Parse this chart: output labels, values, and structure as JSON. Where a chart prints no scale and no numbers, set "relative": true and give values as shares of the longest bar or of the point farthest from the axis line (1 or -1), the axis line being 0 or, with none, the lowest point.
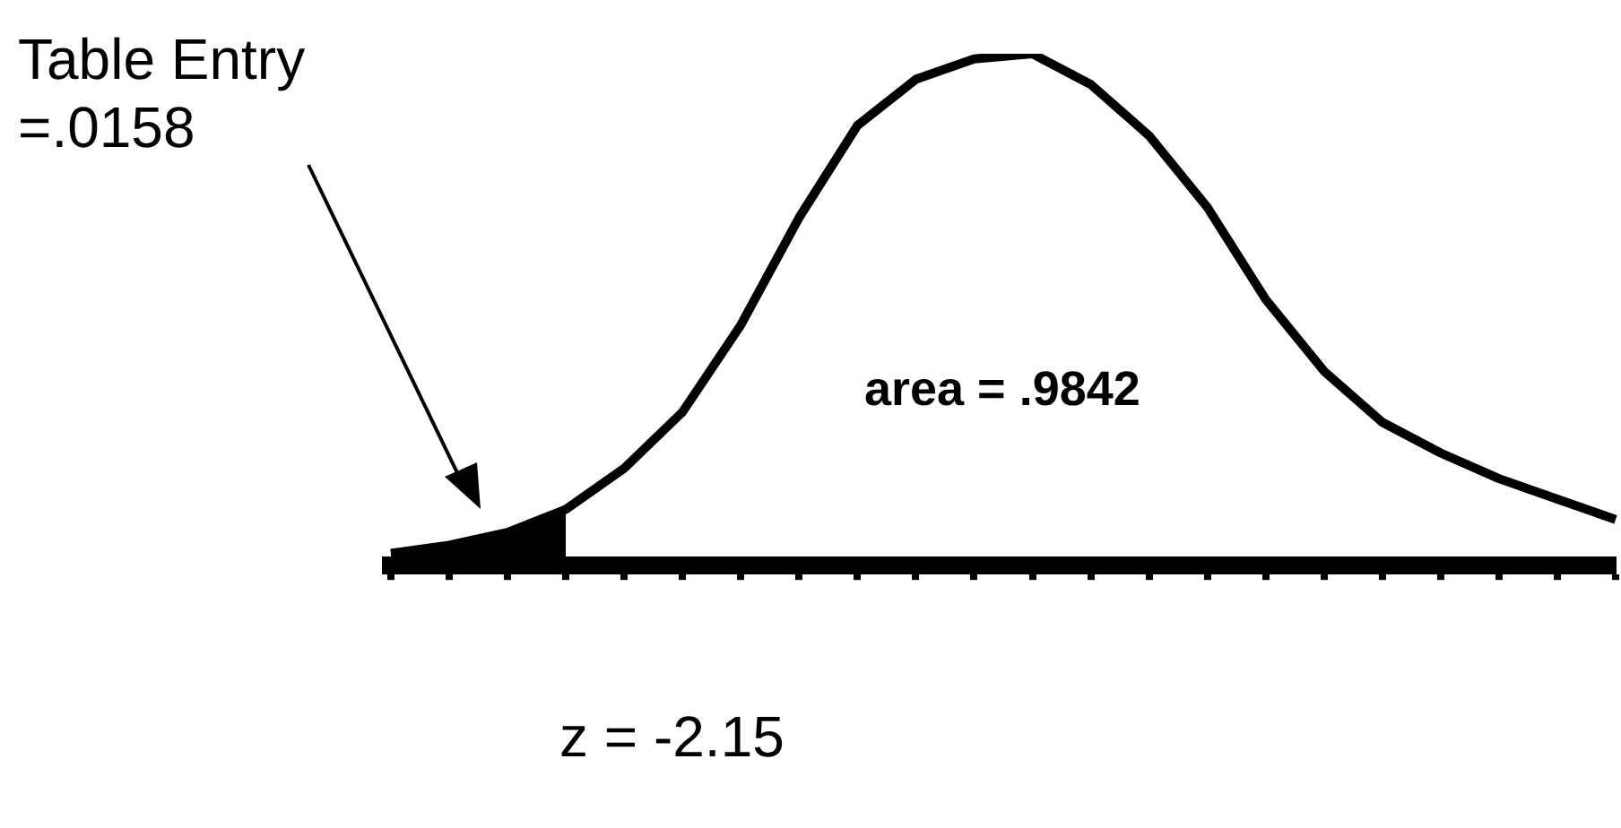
{
  "chart_data": {
    "type": "line",
    "relative": true,
    "legend": false,
    "categories": [
      null,
      null,
      null,
      null,
      null,
      null,
      null,
      null,
      null,
      null,
      null,
      null,
      null,
      null,
      null,
      null,
      null,
      null,
      null,
      null,
      null,
      null
    ],
    "series": [
      {
        "type": "area",
        "color": "#000000",
        "values": [
          0.024,
          0.04,
          0.065,
          0.11,
          null,
          null,
          null,
          null,
          null,
          null,
          null,
          null,
          null,
          null,
          null,
          null,
          null,
          null,
          null,
          null,
          null,
          null
        ]
      },
      {
        "type": "line",
        "color": "#000000",
        "values": [
          0.024,
          0.04,
          0.065,
          0.11,
          0.19,
          0.3,
          0.47,
          0.68,
          0.86,
          0.95,
          0.99,
          1,
          0.94,
          0.84,
          0.7,
          0.52,
          0.38,
          0.28,
          0.22,
          0.17,
          0.13,
          0.09
        ]
      }
    ],
    "annotations": [
      "Table Entry =.0158",
      "area = .9842",
      "z = -2.15"
    ]
  }
}
